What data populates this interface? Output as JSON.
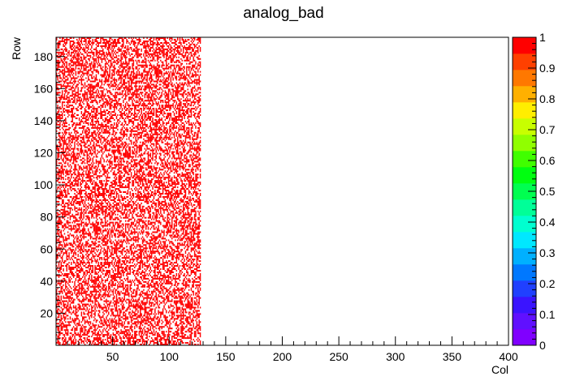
{
  "chart_data": {
    "type": "heatmap",
    "title": "analog_bad",
    "xlabel": "Col",
    "ylabel": "Row",
    "xlim": [
      0,
      400
    ],
    "ylim": [
      0,
      192
    ],
    "x_ticks": [
      50,
      100,
      150,
      200,
      250,
      300,
      350,
      400
    ],
    "y_ticks": [
      20,
      40,
      60,
      80,
      100,
      120,
      140,
      160,
      180
    ],
    "zlim": [
      0,
      1
    ],
    "z_ticks": [
      0,
      0.1,
      0.2,
      0.3,
      0.4,
      0.5,
      0.6,
      0.7,
      0.8,
      0.9,
      1
    ],
    "z_tick_labels": [
      "0",
      "0.1",
      "0.2",
      "0.3",
      "0.4",
      "0.5",
      "0.6",
      "0.7",
      "0.8",
      "0.9",
      "1"
    ],
    "palette": [
      "#8000ff",
      "#6010ff",
      "#3a14ff",
      "#2040ff",
      "#0078ff",
      "#00b0ff",
      "#00e8ff",
      "#00ffd0",
      "#00ff98",
      "#00ff50",
      "#00ff10",
      "#40ff00",
      "#90ff00",
      "#c8ff00",
      "#ffee00",
      "#ffb000",
      "#ff7800",
      "#ff4000",
      "#ff0000"
    ],
    "filled_color": "#ff0000",
    "occupied_region": {
      "col_range": [
        0,
        128
      ],
      "row_range": [
        0,
        192
      ]
    },
    "cell_values_description": "Random binary pattern: cells are either 1 (red) or empty within columns 0-128, roughly 50% filled",
    "fill_fraction": 0.5
  }
}
